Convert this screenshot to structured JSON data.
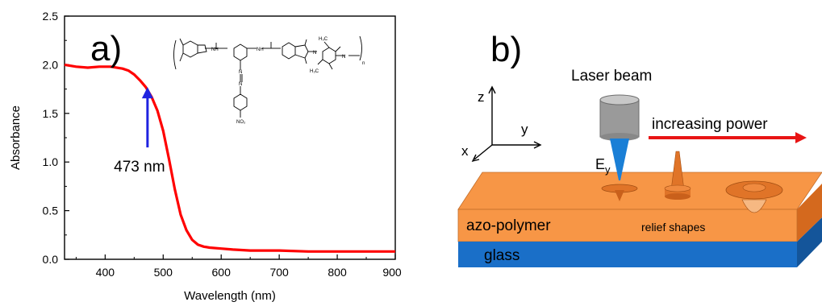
{
  "chart_data": {
    "type": "line",
    "xlabel": "Wavelength (nm)",
    "ylabel": "Absorbance",
    "xlim": [
      330,
      900
    ],
    "ylim": [
      0.0,
      2.5
    ],
    "x_ticks": [
      400,
      500,
      600,
      700,
      800,
      900
    ],
    "y_ticks": [
      0.0,
      0.5,
      1.0,
      1.5,
      2.0,
      2.5
    ],
    "y_tick_labels": [
      "0.0",
      "0.5",
      "1.0",
      "1.5",
      "2.0",
      "2.5"
    ],
    "series_color": "#ff0000",
    "x": [
      330,
      350,
      370,
      390,
      410,
      430,
      440,
      450,
      460,
      470,
      480,
      490,
      500,
      510,
      520,
      530,
      540,
      550,
      560,
      570,
      580,
      600,
      620,
      650,
      700,
      750,
      800,
      850,
      900
    ],
    "y": [
      2.0,
      1.98,
      1.97,
      1.98,
      1.98,
      1.96,
      1.94,
      1.9,
      1.84,
      1.77,
      1.67,
      1.53,
      1.32,
      1.03,
      0.72,
      0.46,
      0.3,
      0.2,
      0.15,
      0.13,
      0.12,
      0.11,
      0.1,
      0.09,
      0.09,
      0.08,
      0.08,
      0.08,
      0.08
    ],
    "annotation": {
      "text": "473 nm",
      "x": 473,
      "y_tip": 1.77,
      "y_tail": 1.15,
      "arrow_color": "#1f23e0"
    }
  },
  "panel_a": {
    "label": "a)",
    "structure_labels": {
      "nh_left": "NH",
      "nh_right": "NH",
      "n_imide": "N",
      "n_terminal": "N",
      "no2": "NO₂",
      "n_sub": "n",
      "me": "H₃C"
    }
  },
  "panel_b": {
    "label": "b)",
    "laser_label": "Laser beam",
    "power_label": "increasing power",
    "field_label": "E",
    "field_sub": "y",
    "axis_z": "z",
    "axis_y": "y",
    "axis_x": "x",
    "layer_top": "azo-polymer",
    "layer_bottom": "glass",
    "relief_label": "relief shapes",
    "colors": {
      "polymer_top": "#f79646",
      "polymer_front": "#f79646",
      "polymer_side": "#d4691e",
      "glass_front": "#1a6fc8",
      "glass_side": "#14559a",
      "beam": "#1a7fd6",
      "arrow_red": "#e81414",
      "relief": "#e07428",
      "lens_body": "#9a9a9a"
    }
  }
}
